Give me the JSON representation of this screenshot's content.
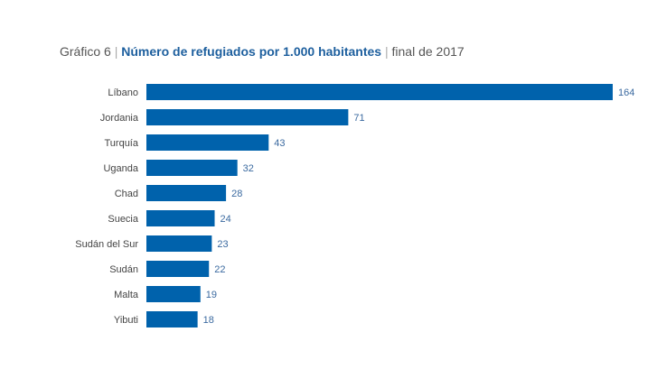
{
  "chart_data": {
    "type": "bar",
    "orientation": "horizontal",
    "title": {
      "prefix": "Gráfico 6",
      "main": "Número de refugiados por 1.000 habitantes",
      "suffix": "final de 2017"
    },
    "categories": [
      "Líbano",
      "Jordania",
      "Turquía",
      "Uganda",
      "Chad",
      "Suecia",
      "Sudán del Sur",
      "Sudán",
      "Malta",
      "Yibuti"
    ],
    "values": [
      164,
      71,
      43,
      32,
      28,
      24,
      23,
      22,
      19,
      18
    ],
    "xlim": [
      0,
      164
    ],
    "grid": false,
    "data_labels": true,
    "colors": {
      "bar": "#0062ac",
      "value_label": "#3b6aa0",
      "category_label": "#444444"
    }
  }
}
